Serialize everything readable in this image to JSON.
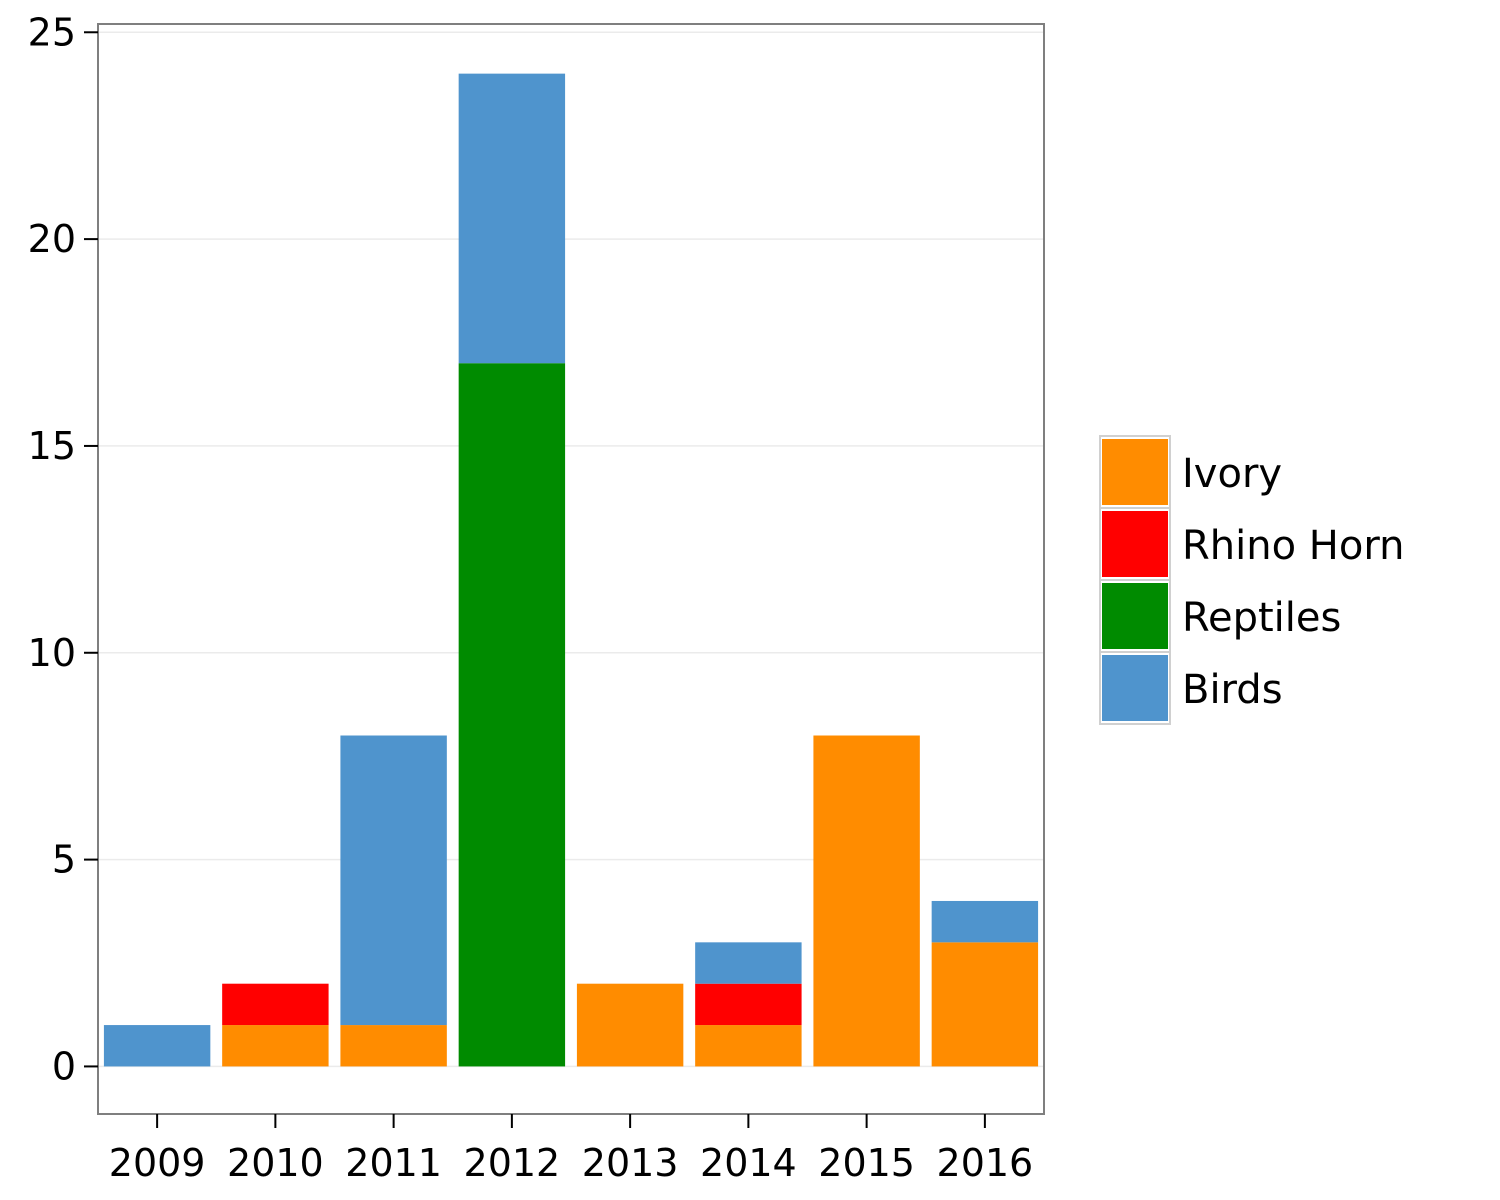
{
  "chart_data": {
    "type": "bar",
    "stacked": true,
    "title": "",
    "xlabel": "",
    "ylabel": "",
    "categories": [
      "2009",
      "2010",
      "2011",
      "2012",
      "2013",
      "2014",
      "2015",
      "2016"
    ],
    "ylim": [
      -1.15,
      25.2
    ],
    "yticks": [
      0,
      5,
      10,
      15,
      20,
      25
    ],
    "grid": true,
    "legend_position": "right",
    "series": [
      {
        "name": "Ivory",
        "color": "#FF8C00",
        "values": [
          0,
          1,
          1,
          0,
          2,
          1,
          8,
          3
        ]
      },
      {
        "name": "Rhino Horn",
        "color": "#FF0000",
        "values": [
          0,
          1,
          0,
          0,
          0,
          1,
          0,
          0
        ]
      },
      {
        "name": "Reptiles",
        "color": "#008B00",
        "values": [
          0,
          0,
          0,
          17,
          0,
          0,
          0,
          0
        ]
      },
      {
        "name": "Birds",
        "color": "#4F94CD",
        "values": [
          1,
          0,
          7,
          7,
          0,
          1,
          0,
          1
        ]
      }
    ]
  }
}
